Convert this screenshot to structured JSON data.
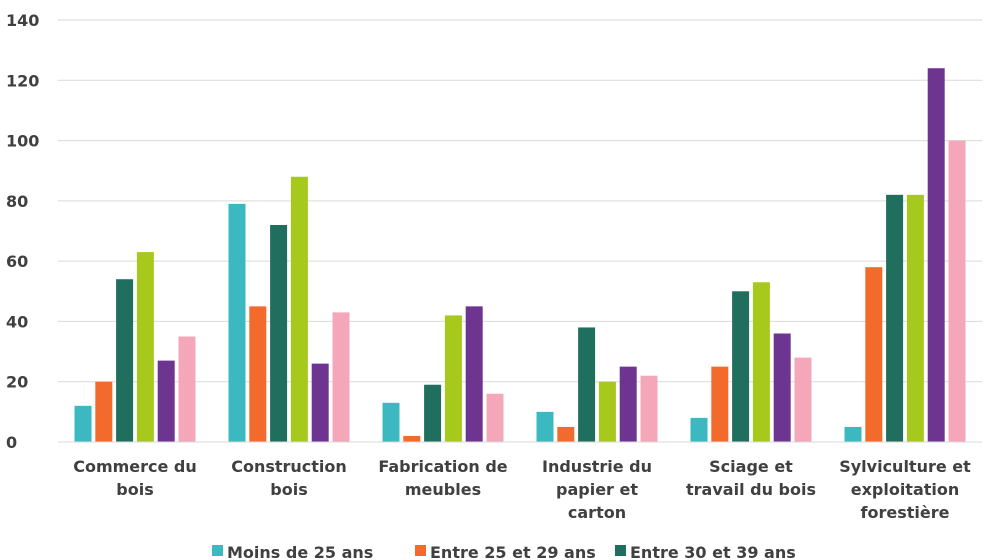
{
  "chart_data": {
    "type": "bar",
    "title": "",
    "xlabel": "",
    "ylabel": "",
    "ylim": [
      0,
      140
    ],
    "yticks": [
      0,
      20,
      40,
      60,
      80,
      100,
      120,
      140
    ],
    "grid": true,
    "legend_position": "bottom",
    "categories": [
      [
        "Commerce du",
        "bois"
      ],
      [
        "Construction",
        "bois"
      ],
      [
        "Fabrication de",
        "meubles"
      ],
      [
        "Industrie du",
        "papier et",
        "carton"
      ],
      [
        "Sciage et",
        "travail du bois"
      ],
      [
        "Sylviculture et",
        "exploitation",
        "forestière"
      ]
    ],
    "series": [
      {
        "name": "Moins de 25 ans",
        "color": "#3BB8C0",
        "values": [
          12,
          79,
          13,
          10,
          8,
          5
        ]
      },
      {
        "name": "Entre 25 et 29 ans",
        "color": "#F26B2D",
        "values": [
          20,
          45,
          2,
          5,
          25,
          58
        ]
      },
      {
        "name": "Entre 30 et 39 ans",
        "color": "#1F6E5E",
        "values": [
          54,
          72,
          19,
          38,
          50,
          82
        ]
      },
      {
        "name": "",
        "color": "#A7C91E",
        "values": [
          63,
          88,
          42,
          20,
          53,
          82
        ]
      },
      {
        "name": "",
        "color": "#6E3590",
        "values": [
          27,
          26,
          45,
          25,
          36,
          124
        ]
      },
      {
        "name": "",
        "color": "#F4A7B9",
        "values": [
          35,
          43,
          16,
          22,
          28,
          100
        ]
      }
    ]
  }
}
